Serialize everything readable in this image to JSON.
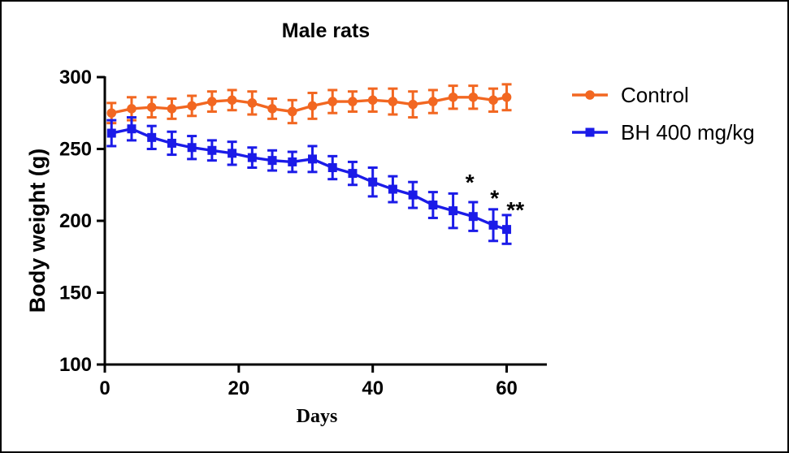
{
  "window": {
    "background": "#ffffff",
    "border_color": "#000000",
    "axis_color": "#000000"
  },
  "chart_data": {
    "type": "line",
    "title": "Male rats",
    "xlabel": "Days",
    "ylabel": "Body weight (g)",
    "xlim": [
      0,
      66
    ],
    "ylim": [
      100,
      300
    ],
    "xticks": [
      0,
      20,
      40,
      60
    ],
    "yticks": [
      100,
      150,
      200,
      250,
      300
    ],
    "grid": false,
    "legend_position": "right-outside",
    "x": [
      1,
      4,
      7,
      10,
      13,
      16,
      19,
      22,
      25,
      28,
      31,
      34,
      37,
      40,
      43,
      46,
      49,
      52,
      55,
      58,
      60
    ],
    "series": [
      {
        "name": "Control",
        "color": "#F26721",
        "marker": "circle",
        "values": [
          275,
          278,
          279,
          278,
          280,
          283,
          284,
          282,
          278,
          276,
          280,
          283,
          283,
          284,
          283,
          281,
          283,
          286,
          286,
          284,
          286
        ],
        "errors": [
          7,
          8,
          7,
          7,
          7,
          7,
          7,
          8,
          7,
          8,
          9,
          8,
          7,
          8,
          9,
          9,
          8,
          8,
          8,
          8,
          9
        ]
      },
      {
        "name": "BH 400 mg/kg",
        "color": "#1B1BE8",
        "marker": "square",
        "values": [
          261,
          264,
          258,
          254,
          251,
          249,
          247,
          244,
          242,
          241,
          243,
          237,
          233,
          227,
          222,
          218,
          211,
          207,
          203,
          197,
          194
        ],
        "errors": [
          9,
          8,
          8,
          8,
          8,
          7,
          8,
          7,
          7,
          7,
          9,
          8,
          8,
          10,
          9,
          9,
          9,
          12,
          10,
          11,
          10
        ]
      }
    ],
    "annotations": [
      {
        "x": 54.5,
        "y": 227,
        "label": "*"
      },
      {
        "x": 58.2,
        "y": 216,
        "label": "*"
      },
      {
        "x": 61.3,
        "y": 208,
        "label": "**"
      }
    ]
  }
}
